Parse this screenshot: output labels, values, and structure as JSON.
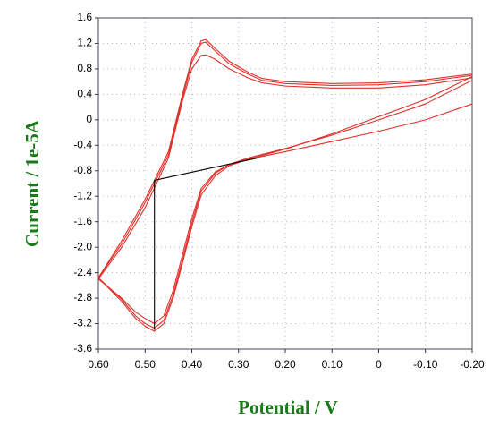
{
  "chart_data": {
    "type": "line",
    "xlabel": "Potential / V",
    "ylabel": "Current / 1e-5A",
    "xlim": [
      0.6,
      -0.2
    ],
    "xticks": [
      {
        "value": 0.6,
        "label": "0.60"
      },
      {
        "value": 0.5,
        "label": "0.50"
      },
      {
        "value": 0.4,
        "label": "0.40"
      },
      {
        "value": 0.3,
        "label": "0.30"
      },
      {
        "value": 0.2,
        "label": "0.20"
      },
      {
        "value": 0.1,
        "label": "0.10"
      },
      0,
      {
        "value": -0.1,
        "label": "-0.10"
      },
      {
        "value": -0.2,
        "label": "-0.20"
      }
    ],
    "ylim": [
      -3.6,
      1.6
    ],
    "yticks": [
      1.6,
      1.2,
      0.8,
      0.4,
      0,
      -0.4,
      -0.8,
      -1.2,
      -1.6,
      {
        "value": -2.0,
        "label": "-2.0"
      },
      -2.4,
      -2.8,
      -3.2,
      -3.6
    ],
    "grid": true,
    "series": [
      {
        "color": "#e0302a",
        "x": [
          -0.2,
          -0.1,
          0,
          0.1,
          0.2,
          0.25,
          0.28,
          0.32,
          0.35,
          0.37,
          0.38,
          0.4,
          0.42,
          0.45,
          0.5,
          0.55,
          0.6,
          0.55,
          0.52,
          0.5,
          0.48,
          0.46,
          0.44,
          0.42,
          0.4,
          0.38,
          0.35,
          0.32,
          0.28,
          0.2,
          0.1,
          0,
          -0.1,
          -0.2
        ],
        "values": [
          0.72,
          0.63,
          0.58,
          0.57,
          0.6,
          0.65,
          0.75,
          0.92,
          1.12,
          1.26,
          1.24,
          0.95,
          0.4,
          -0.5,
          -1.25,
          -1.9,
          -2.48,
          -2.85,
          -3.12,
          -3.24,
          -3.32,
          -3.2,
          -2.8,
          -2.25,
          -1.68,
          -1.18,
          -0.88,
          -0.72,
          -0.62,
          -0.46,
          -0.22,
          0.05,
          0.32,
          0.68
        ]
      },
      {
        "color": "#e0302a",
        "x": [
          -0.2,
          -0.1,
          0,
          0.1,
          0.2,
          0.25,
          0.28,
          0.32,
          0.35,
          0.37,
          0.38,
          0.4,
          0.42,
          0.45,
          0.5,
          0.55,
          0.6,
          0.55,
          0.52,
          0.5,
          0.48,
          0.46,
          0.44,
          0.42,
          0.4,
          0.38,
          0.35,
          0.32,
          0.28,
          0.2,
          0.1,
          0,
          -0.1,
          -0.2
        ],
        "values": [
          0.7,
          0.6,
          0.55,
          0.54,
          0.57,
          0.62,
          0.72,
          0.88,
          1.08,
          1.22,
          1.2,
          0.9,
          0.35,
          -0.55,
          -1.3,
          -1.95,
          -2.48,
          -2.82,
          -3.08,
          -3.2,
          -3.27,
          -3.15,
          -2.75,
          -2.2,
          -1.62,
          -1.12,
          -0.84,
          -0.7,
          -0.6,
          -0.45,
          -0.24,
          0.0,
          0.25,
          0.62
        ]
      },
      {
        "color": "#e0302a",
        "x": [
          -0.2,
          -0.1,
          0,
          0.1,
          0.2,
          0.25,
          0.28,
          0.32,
          0.35,
          0.37,
          0.38,
          0.4,
          0.42,
          0.45,
          0.5,
          0.55,
          0.6,
          0.55,
          0.52,
          0.5,
          0.48,
          0.46,
          0.44,
          0.42,
          0.4,
          0.38,
          0.35,
          0.32,
          0.28,
          0.2,
          0.1,
          0,
          -0.1,
          -0.2
        ],
        "values": [
          0.66,
          0.55,
          0.5,
          0.5,
          0.53,
          0.58,
          0.66,
          0.8,
          0.95,
          1.02,
          1.01,
          0.8,
          0.3,
          -0.6,
          -1.38,
          -2.0,
          -2.5,
          -2.8,
          -3.02,
          -3.12,
          -3.2,
          -3.08,
          -2.68,
          -2.12,
          -1.55,
          -1.08,
          -0.82,
          -0.7,
          -0.62,
          -0.5,
          -0.34,
          -0.18,
          0.0,
          0.25
        ]
      },
      {
        "color": "#000000",
        "x": [
          0.26,
          0.48,
          0.48
        ],
        "values": [
          -0.6,
          -0.95,
          -3.3
        ]
      }
    ]
  }
}
